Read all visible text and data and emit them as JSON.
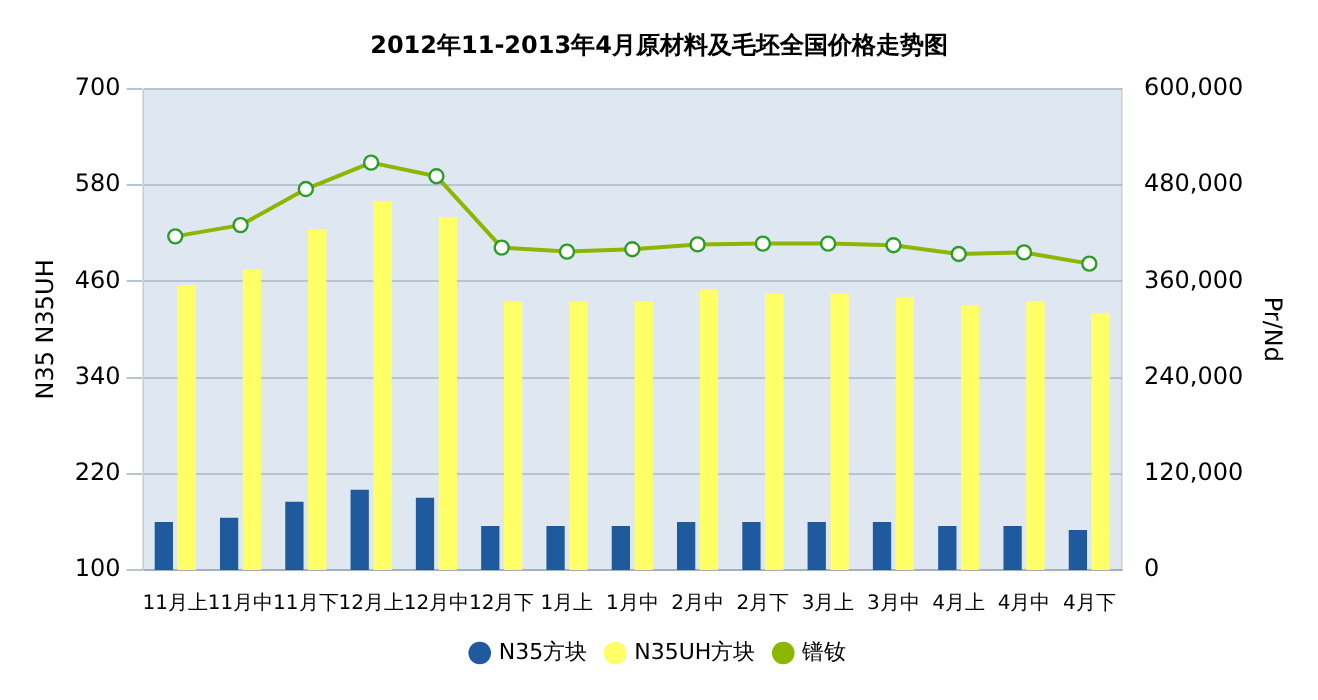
{
  "chart_data": {
    "type": "bar",
    "title": "2012年11-2013年4月原材料及毛坯全国价格走势图",
    "ylabel": "N35 N35UH",
    "y2label": "Pr/Nd",
    "categories": [
      "11月上",
      "11月中",
      "11月下",
      "12月上",
      "12月中",
      "12月下",
      "1月上",
      "1月中",
      "2月中",
      "2月下",
      "3月上",
      "3月中",
      "4月上",
      "4月中",
      "4月下"
    ],
    "series": [
      {
        "name": "N35方块",
        "color": "#1f5a9e",
        "values": [
          160,
          165,
          185,
          200,
          190,
          155,
          155,
          155,
          160,
          160,
          160,
          160,
          155,
          155,
          150
        ]
      },
      {
        "name": "N35UH方块",
        "color": "#ffff66",
        "values": [
          455,
          475,
          525,
          560,
          540,
          435,
          435,
          435,
          450,
          445,
          445,
          440,
          430,
          435,
          420
        ]
      },
      {
        "name": "镨钕",
        "type": "line",
        "axis": "y2",
        "color": "#8db600",
        "marker": "circle",
        "values": [
          416000,
          430000,
          475000,
          508000,
          491000,
          402000,
          397000,
          400000,
          406000,
          407000,
          407000,
          405000,
          394000,
          396000,
          382000
        ]
      }
    ],
    "ylim": [
      100,
      700
    ],
    "yticks": [
      100,
      220,
      340,
      460,
      580,
      700
    ],
    "y2lim": [
      0,
      600000
    ],
    "y2ticks": [
      {
        "value": 0,
        "label": "0"
      },
      {
        "value": 120000,
        "label": "120,000"
      },
      {
        "value": 240000,
        "label": "240,000"
      },
      {
        "value": 360000,
        "label": "360,000"
      },
      {
        "value": 480000,
        "label": "480,000"
      },
      {
        "value": 600000,
        "label": "600,000"
      }
    ],
    "grid": "y",
    "legend": "bottom"
  }
}
